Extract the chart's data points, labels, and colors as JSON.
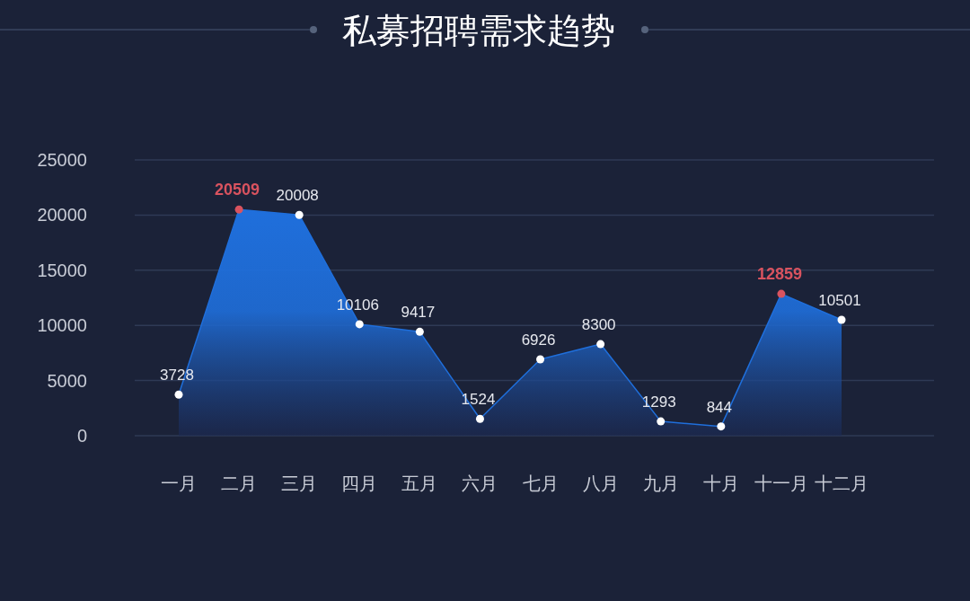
{
  "chart_data": {
    "type": "area",
    "title": "私募招聘需求趋势",
    "categories": [
      "一月",
      "二月",
      "三月",
      "四月",
      "五月",
      "六月",
      "七月",
      "八月",
      "九月",
      "十月",
      "十一月",
      "十二月"
    ],
    "series": [
      {
        "color": "#1f6fdc",
        "values": [
          3728,
          20509,
          20008,
          10106,
          9417,
          1524,
          6926,
          8300,
          1293,
          844,
          12859,
          10501
        ],
        "colors": [
          "#ffffff",
          "#d9535f",
          "#ffffff",
          "#ffffff",
          "#ffffff",
          "#ffffff",
          "#ffffff",
          "#ffffff",
          "#ffffff",
          "#ffffff",
          "#d9535f",
          "#ffffff"
        ]
      }
    ],
    "ylim": [
      0,
      25000
    ],
    "yticks": [
      0,
      5000,
      10000,
      15000,
      20000,
      25000
    ],
    "grid": "y",
    "marker": "circle",
    "data_labels": true
  }
}
